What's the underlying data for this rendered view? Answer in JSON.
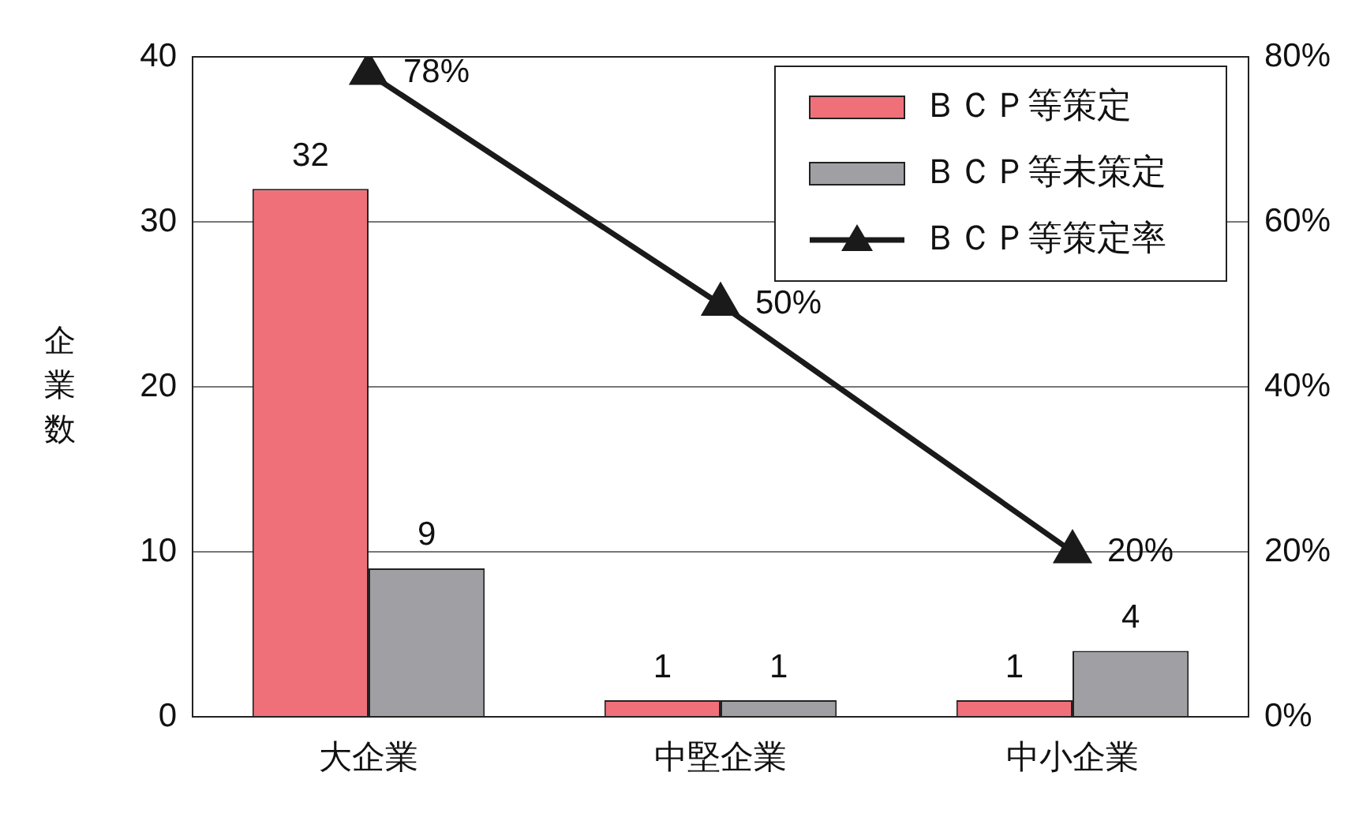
{
  "chart_data": {
    "type": "bar",
    "ylabel": "企業数",
    "categories": [
      "大企業",
      "中堅企業",
      "中小企業"
    ],
    "series": [
      {
        "name": "ＢＣＰ等策定",
        "color": "#f0707a",
        "values": [
          32,
          1,
          1
        ],
        "value_labels": [
          "32",
          "1",
          "1"
        ]
      },
      {
        "name": "ＢＣＰ等未策定",
        "color": "#a0a0a4",
        "values": [
          9,
          1,
          4
        ],
        "value_labels": [
          "9",
          "1",
          "4"
        ]
      },
      {
        "name": "ＢＣＰ等策定率",
        "type": "line",
        "axis": "y2",
        "color": "#1a1a1a",
        "marker": "triangle",
        "line_style": "solid",
        "values": [
          78,
          50,
          20
        ],
        "value_labels": [
          "78%",
          "50%",
          "20%"
        ]
      }
    ],
    "ylim": [
      0,
      40
    ],
    "yticks": [
      0,
      10,
      20,
      30,
      40
    ],
    "y2lim": [
      0,
      80
    ],
    "y2ticks": [
      {
        "value": 0,
        "label": "0%"
      },
      {
        "value": 20,
        "label": "20%"
      },
      {
        "value": 40,
        "label": "40%"
      },
      {
        "value": 60,
        "label": "60%"
      },
      {
        "value": 80,
        "label": "80%"
      }
    ],
    "grid": "y",
    "legend": "top right"
  }
}
